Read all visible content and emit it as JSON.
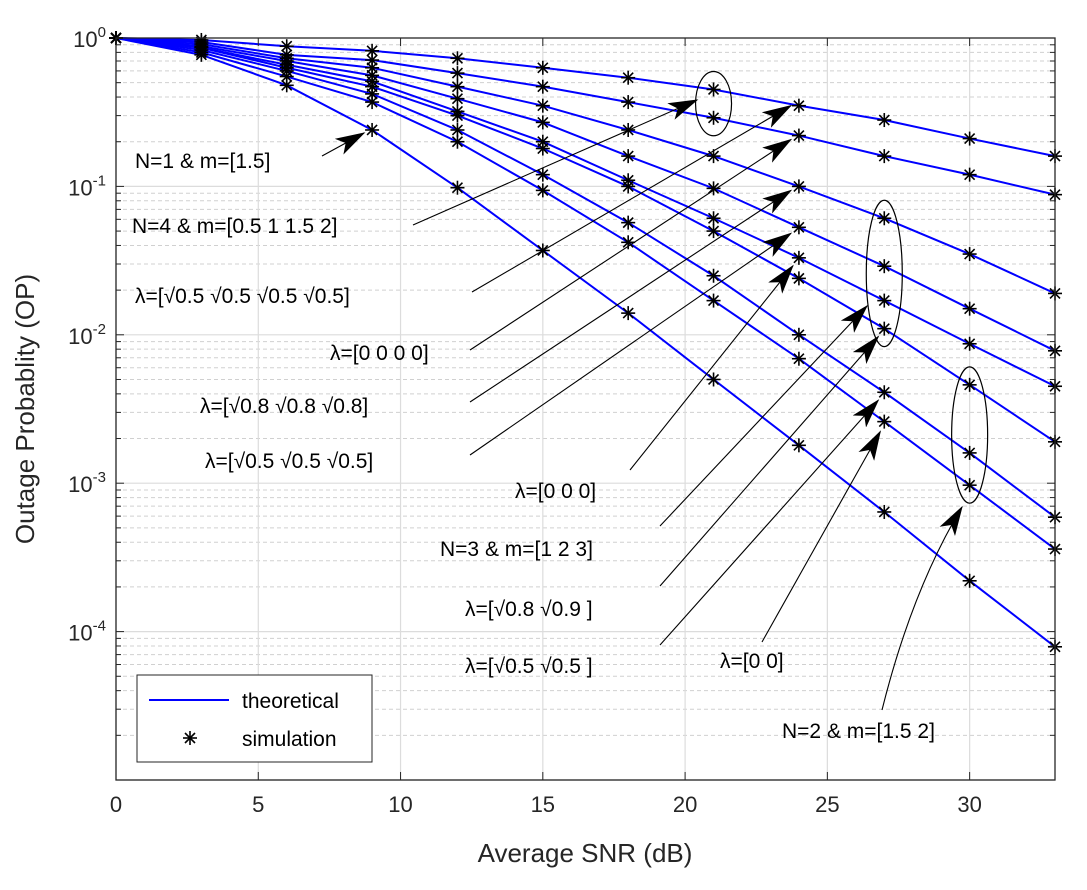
{
  "chart_data": {
    "type": "line",
    "title": "",
    "xlabel": "Average SNR (dB)",
    "ylabel": "Outage Probablity (OP)",
    "xlim": [
      0,
      33
    ],
    "ylim": [
      1e-05,
      1
    ],
    "yscale": "log",
    "grid": true,
    "x_ticks": [
      "0",
      "5",
      "10",
      "15",
      "20",
      "25",
      "30"
    ],
    "y_ticks": [
      {
        "value": 1,
        "base": "10",
        "exp": "0"
      },
      {
        "value": 0.1,
        "base": "10",
        "exp": "-1"
      },
      {
        "value": 0.01,
        "base": "10",
        "exp": "-2"
      },
      {
        "value": 0.001,
        "base": "10",
        "exp": "-3"
      },
      {
        "value": 0.0001,
        "base": "10",
        "exp": "-4"
      }
    ],
    "line_color": "#0000ff",
    "marker_color": "#000000",
    "legend": {
      "placement": "bottom-left",
      "entries": [
        {
          "label": "theoretical",
          "style": "line"
        },
        {
          "label": "simulation",
          "style": "asterisk"
        }
      ]
    },
    "x": [
      0,
      3,
      6,
      9,
      12,
      15,
      18,
      21,
      24,
      27,
      30,
      33
    ],
    "series": [
      {
        "values": [
          1,
          0.97,
          0.88,
          0.82,
          0.73,
          0.63,
          0.54,
          0.45,
          0.35,
          0.28,
          0.21,
          0.16
        ]
      },
      {
        "values": [
          1,
          0.94,
          0.77,
          0.71,
          0.58,
          0.47,
          0.37,
          0.29,
          0.22,
          0.16,
          0.12,
          0.088
        ]
      },
      {
        "values": [
          1,
          0.91,
          0.73,
          0.63,
          0.47,
          0.35,
          0.24,
          0.16,
          0.1,
          0.061,
          0.035,
          0.019
        ]
      },
      {
        "values": [
          1,
          0.88,
          0.7,
          0.56,
          0.39,
          0.27,
          0.16,
          0.097,
          0.053,
          0.029,
          0.015,
          0.0078
        ]
      },
      {
        "values": [
          1,
          0.86,
          0.66,
          0.51,
          0.32,
          0.2,
          0.11,
          0.061,
          0.033,
          0.017,
          0.0087,
          0.0045
        ]
      },
      {
        "values": [
          1,
          0.86,
          0.63,
          0.47,
          0.3,
          0.18,
          0.1,
          0.05,
          0.024,
          0.011,
          0.0046,
          0.0019
        ]
      },
      {
        "values": [
          1,
          0.83,
          0.6,
          0.42,
          0.24,
          0.12,
          0.057,
          0.025,
          0.01,
          0.0041,
          0.0016,
          0.00059
        ]
      },
      {
        "values": [
          1,
          0.8,
          0.55,
          0.37,
          0.2,
          0.094,
          0.042,
          0.017,
          0.0069,
          0.0026,
          0.00097,
          0.00036
        ]
      },
      {
        "values": [
          1,
          0.77,
          0.48,
          0.24,
          0.098,
          0.037,
          0.014,
          0.005,
          0.0018,
          0.00064,
          0.00022,
          7.9e-05
        ]
      }
    ],
    "annotations": [
      {
        "text": "N=1 & m=[1.5]",
        "target": {
          "x": 9,
          "y": 0.24
        }
      },
      {
        "text": "N=4 & m=[0.5 1 1.5 2]",
        "target": {
          "x": 21,
          "y": 0.35
        }
      },
      {
        "text": "λ=[√0.5 √0.5 √0.5 √0.5]",
        "target": {
          "x": 24,
          "y": 0.35
        }
      },
      {
        "text": "λ=[0 0 0 0]",
        "target": {
          "x": 24,
          "y": 0.22
        }
      },
      {
        "text": "λ=[√0.8 √0.8 √0.8]",
        "target": {
          "x": 24,
          "y": 0.1
        }
      },
      {
        "text": "λ=[√0.5 √0.5 √0.5]",
        "target": {
          "x": 24,
          "y": 0.053
        }
      },
      {
        "text": "λ=[0 0 0]",
        "target": {
          "x": 24,
          "y": 0.033
        }
      },
      {
        "text": "N=3 &  m=[1 2 3]",
        "target": {
          "x": 27,
          "y": 0.017
        }
      },
      {
        "text": "λ=[√0.8 √0.9 ]",
        "target": {
          "x": 27,
          "y": 0.011
        }
      },
      {
        "text": "λ=[√0.5 √0.5 ]",
        "target": {
          "x": 27,
          "y": 0.0041
        }
      },
      {
        "text": "λ=[0 0]",
        "target": {
          "x": 27,
          "y": 0.0026
        }
      },
      {
        "text": "N=2 & m=[1.5 2]",
        "target": {
          "x": 30,
          "y": 0.001
        }
      }
    ],
    "ellipses": [
      {
        "x": 21,
        "y_from": 0.29,
        "y_to": 0.45
      },
      {
        "x": 27,
        "y_from": 0.011,
        "y_to": 0.061
      },
      {
        "x": 30,
        "y_from": 0.00097,
        "y_to": 0.0046
      }
    ]
  }
}
